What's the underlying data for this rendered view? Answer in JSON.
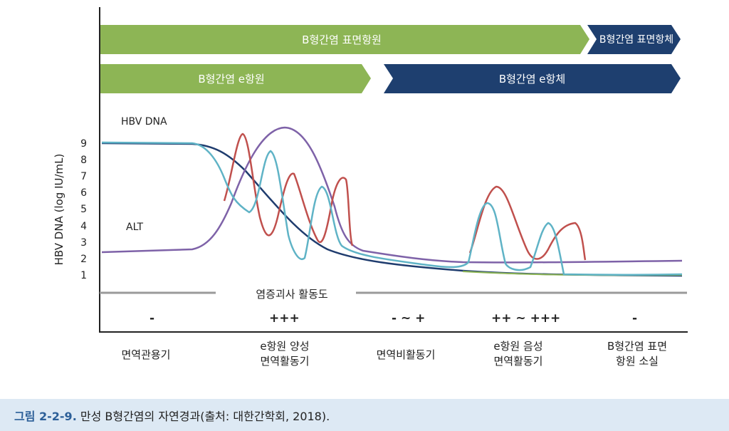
{
  "arrows": {
    "surface_antigen": "B형간염 표면항원",
    "surface_antibody": "B형간염 표면항체",
    "e_antigen": "B형간염 e항원",
    "e_antibody": "B형간염 e항체"
  },
  "labels": {
    "hbv_dna": "HBV DNA",
    "alt": "ALT",
    "y_axis": "HBV DNA (log IU/mL)",
    "activity": "염증괴사 활동도"
  },
  "y_ticks": [
    "9",
    "8",
    "7",
    "6",
    "5",
    "4",
    "3",
    "2",
    "1"
  ],
  "activity_levels": [
    "-",
    "+++",
    "- ~ +",
    "++ ~ +++",
    "-"
  ],
  "phases": [
    [
      "면역관용기"
    ],
    [
      "e항원 양성",
      "면역활동기"
    ],
    [
      "면역비활동기"
    ],
    [
      "e항원 음성",
      "면역활동기"
    ],
    [
      "B형간염 표면",
      "항원 소실"
    ]
  ],
  "caption": {
    "number": "그림 2-2-9.",
    "text": " 만성 B형간염의 자연경과(출처: 대한간학회, 2018)."
  },
  "colors": {
    "green": "#8db555",
    "navy": "#1e3f6f",
    "red": "#c0504d",
    "purple": "#7e62a8",
    "teal": "#5fb3c6",
    "dark": "#1f3c6e",
    "gray": "#9a9a9a",
    "caption_bg": "#dde9f4",
    "caption_num": "#2c5f98"
  }
}
